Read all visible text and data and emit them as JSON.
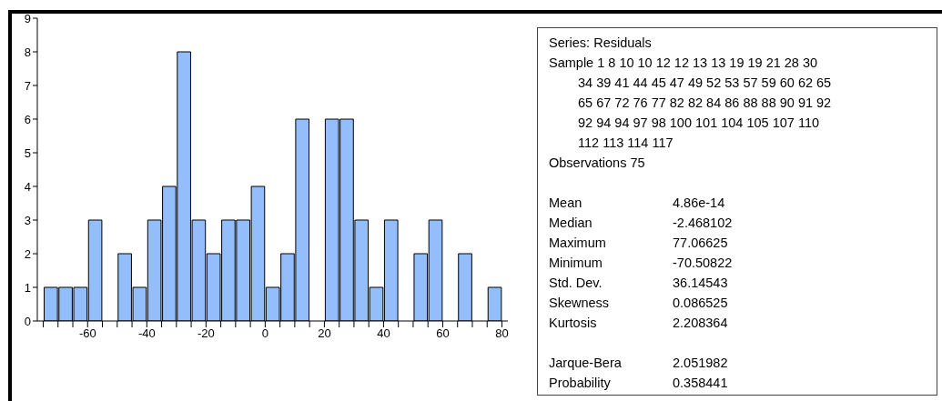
{
  "chart_data": [
    {
      "type": "histogram",
      "color": "#94bdfb",
      "bins": [
        -75,
        -70,
        -65,
        -60,
        -55,
        -50,
        -45,
        -40,
        -35,
        -30,
        -25,
        -20,
        -15,
        -10,
        -5,
        0,
        5,
        10,
        15,
        20,
        25,
        30,
        35,
        40,
        45,
        50,
        55,
        60,
        65,
        70,
        75,
        80
      ],
      "values": [
        1,
        1,
        1,
        3,
        0,
        2,
        1,
        3,
        4,
        8,
        3,
        2,
        3,
        3,
        4,
        1,
        2,
        6,
        0,
        6,
        6,
        3,
        1,
        3,
        0,
        2,
        3,
        0,
        2,
        0,
        1
      ],
      "xlim": [
        -77,
        82
      ],
      "ylim": [
        0,
        9
      ],
      "yticks": [
        0,
        1,
        2,
        3,
        4,
        5,
        6,
        7,
        8,
        9
      ],
      "xticks": [
        {
          "value": -75,
          "label": null
        },
        {
          "value": -70,
          "label": null
        },
        {
          "value": -65,
          "label": null
        },
        -60,
        {
          "value": -55,
          "label": null
        },
        {
          "value": -50,
          "label": null
        },
        {
          "value": -45,
          "label": null
        },
        -40,
        {
          "value": -35,
          "label": null
        },
        {
          "value": -30,
          "label": null
        },
        {
          "value": -25,
          "label": null
        },
        -20,
        {
          "value": -15,
          "label": null
        },
        {
          "value": -10,
          "label": null
        },
        {
          "value": -5,
          "label": null
        },
        0,
        {
          "value": 5,
          "label": null
        },
        {
          "value": 10,
          "label": null
        },
        {
          "value": 15,
          "label": null
        },
        20,
        {
          "value": 25,
          "label": null
        },
        {
          "value": 30,
          "label": null
        },
        {
          "value": 35,
          "label": null
        },
        40,
        {
          "value": 45,
          "label": null
        },
        {
          "value": 50,
          "label": null
        },
        {
          "value": 55,
          "label": null
        },
        60,
        {
          "value": 65,
          "label": null
        },
        {
          "value": 70,
          "label": null
        },
        {
          "value": 75,
          "label": null
        },
        80
      ],
      "tick_labels": true
    },
    {
      "type": "other",
      "annotations": [
        "Series: Residuals",
        "Sample 1 8 10 10 12 12 13 13 19 19 21 28 30",
        "34 39 41 44 45 47 49 52 53 57 59 60 62 65",
        "65 67 72 76 77 82 82 84 86 88 88 90 91 92",
        "92 94 94 97 98 100 101 104 105 107 110",
        "112 113 114 117",
        "Observations 75",
        "Mean\t4.86e-14",
        "Median\t-2.468102",
        "Maximum\t77.06625",
        "Minimum\t-70.50822",
        "Std. Dev.\t36.14543",
        "Skewness\t0.086525",
        "Kurtosis\t2.208364",
        "Jarque-Bera\t2.051982",
        "Probability\t0.358441"
      ]
    }
  ]
}
